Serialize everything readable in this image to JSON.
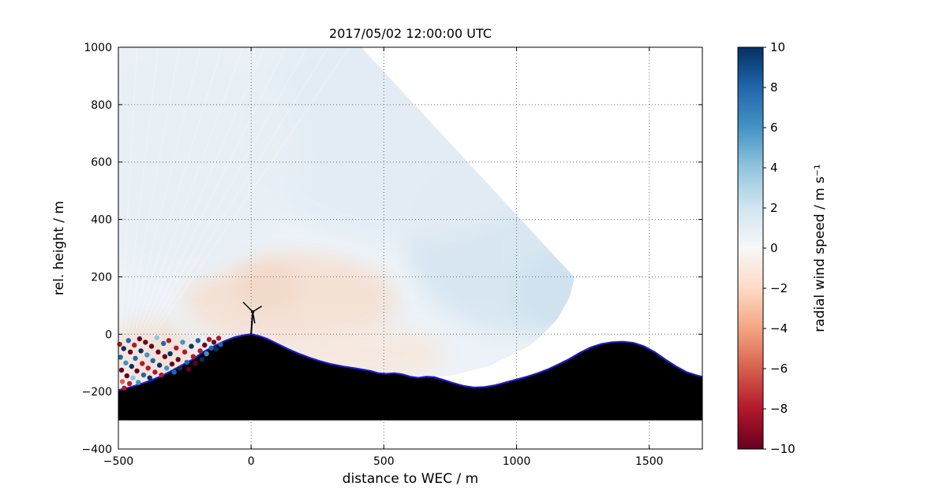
{
  "chart_data": {
    "type": "heatmap",
    "title": "2017/05/02 12:00:00 UTC",
    "xlabel": "distance to WEC / m",
    "ylabel": "rel. height / m",
    "xlim": [
      -500,
      1700
    ],
    "ylim": [
      -400,
      1000
    ],
    "grid": true,
    "xticks": [
      {
        "v": -500,
        "label": "−500"
      },
      {
        "v": 0,
        "label": "0"
      },
      {
        "v": 500,
        "label": "500"
      },
      {
        "v": 1000,
        "label": "1000"
      },
      {
        "v": 1500,
        "label": "1500"
      }
    ],
    "yticks": [
      {
        "v": 1000,
        "label": "1000"
      },
      {
        "v": 800,
        "label": "800"
      },
      {
        "v": 600,
        "label": "600"
      },
      {
        "v": 400,
        "label": "400"
      },
      {
        "v": 200,
        "label": "200"
      },
      {
        "v": 0,
        "label": "0"
      },
      {
        "v": -200,
        "label": "−200"
      },
      {
        "v": -400,
        "label": "−400"
      }
    ],
    "colorbar": {
      "label": "radial wind speed / m s⁻¹",
      "vmin": -10,
      "vmax": 10,
      "colormap": "RdBu",
      "ticks": [
        {
          "v": 10,
          "label": "10"
        },
        {
          "v": 8,
          "label": "8"
        },
        {
          "v": 6,
          "label": "6"
        },
        {
          "v": 4,
          "label": "4"
        },
        {
          "v": 2,
          "label": "2"
        },
        {
          "v": 0,
          "label": "0"
        },
        {
          "v": -2,
          "label": "−2"
        },
        {
          "v": -4,
          "label": "−4"
        },
        {
          "v": -6,
          "label": "−6"
        },
        {
          "v": -8,
          "label": "−8"
        },
        {
          "v": -10,
          "label": "−10"
        }
      ],
      "stops_top_to_bottom": [
        "#053061",
        "#2166ac",
        "#4393c3",
        "#92c5de",
        "#d1e5f0",
        "#f7f7f7",
        "#fddbc7",
        "#f4a582",
        "#d6604d",
        "#b2182b",
        "#67001f"
      ]
    },
    "scan_region": {
      "base_color": "#ecf2f7",
      "polygon": [
        [
          -500,
          1000
        ],
        [
          415,
          1000
        ],
        [
          1218,
          198
        ],
        [
          1200,
          130
        ],
        [
          1155,
          55
        ],
        [
          1105,
          5
        ],
        [
          1050,
          -40
        ],
        [
          900,
          -110
        ],
        [
          750,
          -145
        ],
        [
          640,
          -152
        ],
        [
          520,
          -138
        ],
        [
          400,
          -120
        ],
        [
          300,
          -104
        ],
        [
          200,
          -76
        ],
        [
          100,
          -34
        ],
        [
          30,
          -4
        ],
        [
          -60,
          -10
        ],
        [
          -140,
          -42
        ],
        [
          -220,
          -88
        ],
        [
          -300,
          -128
        ],
        [
          -380,
          -162
        ],
        [
          -460,
          -186
        ],
        [
          -500,
          -195
        ]
      ],
      "beam_origin": [
        -500,
        -185
      ],
      "beam_top_xs": [
        -430,
        -350,
        -270,
        -190,
        -110,
        -30,
        50,
        130,
        210,
        290,
        370
      ],
      "patches": [
        {
          "cx": 150,
          "cy": 120,
          "rx": 400,
          "ry": 165,
          "color": "#f5e1d5",
          "opacity": 0.95
        },
        {
          "cx": -380,
          "cy": -60,
          "rx": 170,
          "ry": 110,
          "color": "#f3dccd",
          "opacity": 0.75
        },
        {
          "cx": 430,
          "cy": -70,
          "rx": 300,
          "ry": 95,
          "color": "#f7e7dc",
          "opacity": 0.85
        },
        {
          "cx": 1020,
          "cy": 340,
          "rx": 440,
          "ry": 340,
          "color": "#d7e6f1",
          "opacity": 0.95
        },
        {
          "cx": 580,
          "cy": 720,
          "rx": 620,
          "ry": 400,
          "color": "#e2ecf4",
          "opacity": 0.85
        },
        {
          "cx": -240,
          "cy": 620,
          "rx": 430,
          "ry": 430,
          "color": "#e8eff5",
          "opacity": 0.8
        },
        {
          "cx": 1160,
          "cy": 150,
          "rx": 160,
          "ry": 130,
          "color": "#cfe1ee",
          "opacity": 0.85
        },
        {
          "cx": 60,
          "cy": 160,
          "rx": 130,
          "ry": 85,
          "color": "#f2d8c7",
          "opacity": 0.8
        }
      ]
    },
    "terrain": {
      "fill": "#000000",
      "line_color": "#1a1acd",
      "base_y": -300,
      "profile": [
        [
          -500,
          -195
        ],
        [
          -460,
          -186
        ],
        [
          -420,
          -175
        ],
        [
          -380,
          -162
        ],
        [
          -340,
          -147
        ],
        [
          -300,
          -128
        ],
        [
          -260,
          -108
        ],
        [
          -220,
          -88
        ],
        [
          -180,
          -62
        ],
        [
          -140,
          -42
        ],
        [
          -100,
          -24
        ],
        [
          -60,
          -10
        ],
        [
          -30,
          -4
        ],
        [
          0,
          0
        ],
        [
          30,
          -6
        ],
        [
          60,
          -16
        ],
        [
          100,
          -34
        ],
        [
          140,
          -52
        ],
        [
          180,
          -68
        ],
        [
          220,
          -82
        ],
        [
          260,
          -94
        ],
        [
          300,
          -104
        ],
        [
          350,
          -113
        ],
        [
          400,
          -120
        ],
        [
          450,
          -128
        ],
        [
          480,
          -136
        ],
        [
          510,
          -138
        ],
        [
          540,
          -136
        ],
        [
          570,
          -140
        ],
        [
          600,
          -148
        ],
        [
          630,
          -152
        ],
        [
          660,
          -148
        ],
        [
          690,
          -150
        ],
        [
          720,
          -158
        ],
        [
          760,
          -170
        ],
        [
          800,
          -180
        ],
        [
          840,
          -186
        ],
        [
          880,
          -184
        ],
        [
          920,
          -178
        ],
        [
          960,
          -168
        ],
        [
          1000,
          -158
        ],
        [
          1040,
          -148
        ],
        [
          1080,
          -136
        ],
        [
          1120,
          -122
        ],
        [
          1160,
          -104
        ],
        [
          1200,
          -86
        ],
        [
          1240,
          -64
        ],
        [
          1280,
          -46
        ],
        [
          1320,
          -34
        ],
        [
          1360,
          -28
        ],
        [
          1400,
          -26
        ],
        [
          1440,
          -30
        ],
        [
          1480,
          -42
        ],
        [
          1520,
          -62
        ],
        [
          1560,
          -88
        ],
        [
          1600,
          -112
        ],
        [
          1640,
          -132
        ],
        [
          1680,
          -144
        ],
        [
          1700,
          -148
        ]
      ]
    },
    "turbine": {
      "x": 0,
      "tower_base": [
        0,
        0
      ],
      "tower_top": [
        6,
        76
      ],
      "hub": [
        6,
        78
      ],
      "blade_tips": [
        [
          -30,
          112
        ],
        [
          40,
          98
        ],
        [
          14,
          38
        ]
      ],
      "color": "#000000"
    },
    "noise_points": {
      "palette": [
        "#67001f",
        "#b2182b",
        "#d6604d",
        "#f4a582",
        "#fddbc7",
        "#92c5de",
        "#4393c3",
        "#2166ac",
        "#053061"
      ],
      "radius": 3.2,
      "dots": [
        [
          -495,
          -35,
          1
        ],
        [
          -492,
          -80,
          7
        ],
        [
          -488,
          -125,
          0
        ],
        [
          -485,
          -165,
          2
        ],
        [
          -480,
          -50,
          8
        ],
        [
          -478,
          -188,
          1
        ],
        [
          -472,
          -100,
          6
        ],
        [
          -468,
          -145,
          0
        ],
        [
          -462,
          -22,
          7
        ],
        [
          -458,
          -172,
          1
        ],
        [
          -455,
          -62,
          0
        ],
        [
          -450,
          -112,
          8
        ],
        [
          -445,
          -152,
          5
        ],
        [
          -440,
          -38,
          1
        ],
        [
          -436,
          -84,
          7
        ],
        [
          -430,
          -128,
          0
        ],
        [
          -425,
          -168,
          6
        ],
        [
          -420,
          -16,
          0
        ],
        [
          -415,
          -58,
          8
        ],
        [
          -410,
          -102,
          1
        ],
        [
          -405,
          -142,
          7
        ],
        [
          -398,
          -28,
          0
        ],
        [
          -392,
          -72,
          6
        ],
        [
          -388,
          -118,
          1
        ],
        [
          -382,
          -152,
          8
        ],
        [
          -375,
          -42,
          0
        ],
        [
          -370,
          -92,
          7
        ],
        [
          -362,
          -132,
          1
        ],
        [
          -355,
          -12,
          5
        ],
        [
          -350,
          -62,
          0
        ],
        [
          -345,
          -108,
          8
        ],
        [
          -338,
          -142,
          1
        ],
        [
          -330,
          -32,
          7
        ],
        [
          -325,
          -78,
          0
        ],
        [
          -318,
          -118,
          6
        ],
        [
          -310,
          -22,
          1
        ],
        [
          -305,
          -68,
          8
        ],
        [
          -298,
          -104,
          0
        ],
        [
          -290,
          -132,
          7
        ],
        [
          -282,
          -48,
          1
        ],
        [
          -275,
          -88,
          0
        ],
        [
          -268,
          -118,
          8
        ],
        [
          -258,
          -28,
          6
        ],
        [
          -250,
          -62,
          1
        ],
        [
          -242,
          -98,
          7
        ],
        [
          -235,
          -122,
          0
        ],
        [
          -225,
          -42,
          8
        ],
        [
          -218,
          -78,
          1
        ],
        [
          -210,
          -102,
          0
        ],
        [
          -200,
          -22,
          7
        ],
        [
          -192,
          -58,
          1
        ],
        [
          -185,
          -88,
          8
        ],
        [
          -175,
          -38,
          0
        ],
        [
          -168,
          -68,
          6
        ],
        [
          -158,
          -18,
          1
        ],
        [
          -150,
          -48,
          7
        ],
        [
          -140,
          -28,
          0
        ],
        [
          -132,
          -52,
          8
        ],
        [
          -122,
          -14,
          1
        ],
        [
          -115,
          -36,
          7
        ]
      ]
    }
  }
}
